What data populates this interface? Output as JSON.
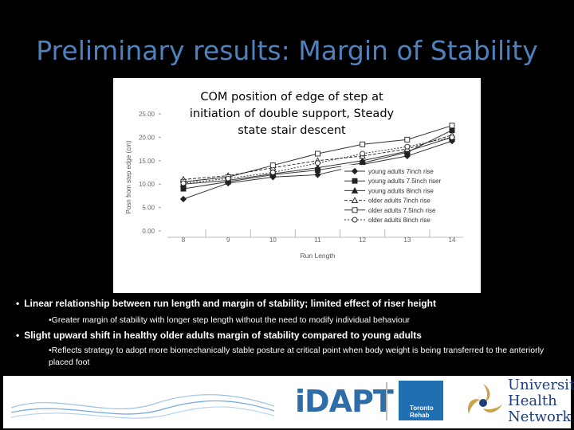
{
  "slide": {
    "title": "Preliminary results: Margin of Stability",
    "bullets": [
      {
        "text": "Linear relationship between run length and margin of stability; limited effect of riser height",
        "sub": "•Greater margin of stability with longer step length without the need to modify individual behaviour"
      },
      {
        "text": "Slight upward shift in healthy older adults margin of stability compared to young adults",
        "sub": "•Reflects strategy to adopt more biomechanically stable posture at critical point when body weight is being transferred to the anteriorly placed foot"
      }
    ],
    "bullet_marker": "•",
    "footer": {
      "idapt_logo": "iDAPT",
      "toronto_logo": [
        "Toronto",
        "Rehab"
      ],
      "uhn_logo": [
        "University",
        "Health",
        "Network"
      ]
    }
  },
  "chart_data": {
    "type": "line",
    "title": "COM position of edge of step at initiation of double support, Steady state stair descent",
    "xlabel": "Run Length",
    "ylabel": "Posn from step edge (cm)",
    "x": [
      8,
      9,
      10,
      11,
      12,
      13,
      14
    ],
    "ylim": [
      0,
      25
    ],
    "yticks": [
      "0.00",
      "5.00",
      "10.00",
      "15.00",
      "20.00",
      "25.00"
    ],
    "legend_position": "right",
    "grid": false,
    "series": [
      {
        "name": "young adults 7inch rise",
        "marker": "diamond-filled",
        "values": [
          6.8,
          10.2,
          11.5,
          12.0,
          14.2,
          16.0,
          19.2
        ]
      },
      {
        "name": "young adults 7.5inch riser",
        "marker": "square-filled",
        "values": [
          9.0,
          10.5,
          12.0,
          13.0,
          14.5,
          16.8,
          21.5
        ]
      },
      {
        "name": "young adults 8inch rise",
        "marker": "triangle-filled",
        "values": [
          10.0,
          10.8,
          12.2,
          13.5,
          15.0,
          17.0,
          20.0
        ]
      },
      {
        "name": "older adults 7inch rise",
        "marker": "triangle-open",
        "values": [
          11.0,
          11.8,
          13.5,
          15.0,
          16.0,
          17.5,
          20.5
        ]
      },
      {
        "name": "older adults 7.5inch rise",
        "marker": "square-open",
        "values": [
          10.5,
          11.5,
          14.0,
          16.5,
          18.5,
          19.5,
          22.5
        ]
      },
      {
        "name": "older adults 8inch rise",
        "marker": "circle-open",
        "values": [
          10.2,
          11.2,
          12.5,
          14.5,
          16.5,
          18.0,
          20.0
        ]
      }
    ]
  }
}
